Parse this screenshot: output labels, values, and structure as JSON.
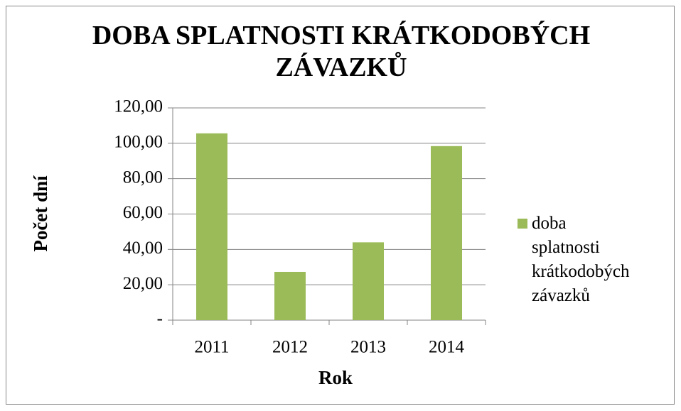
{
  "chart_data": {
    "type": "bar",
    "title": "DOBA SPLATNOSTI KRÁTKODOBÝCH ZÁVAZKŮ",
    "x_label": "Rok",
    "y_label": "Počet dní",
    "categories": [
      "2011",
      "2012",
      "2013",
      "2014"
    ],
    "series": [
      {
        "name": "doba splatnosti krátkodobých závazků",
        "color": "#9bbb59",
        "values": [
          105.6,
          27.3,
          44,
          98.4
        ]
      }
    ],
    "ylim": [
      0,
      120
    ],
    "yticks": [
      {
        "value": 0,
        "label": "-"
      },
      {
        "value": 20,
        "label": "20,00"
      },
      {
        "value": 40,
        "label": "40,00"
      },
      {
        "value": 60,
        "label": "60,00"
      },
      {
        "value": 80,
        "label": "80,00"
      },
      {
        "value": 100,
        "label": "100,00"
      },
      {
        "value": 120,
        "label": "120,00"
      }
    ],
    "grid": true,
    "legend": "right"
  }
}
